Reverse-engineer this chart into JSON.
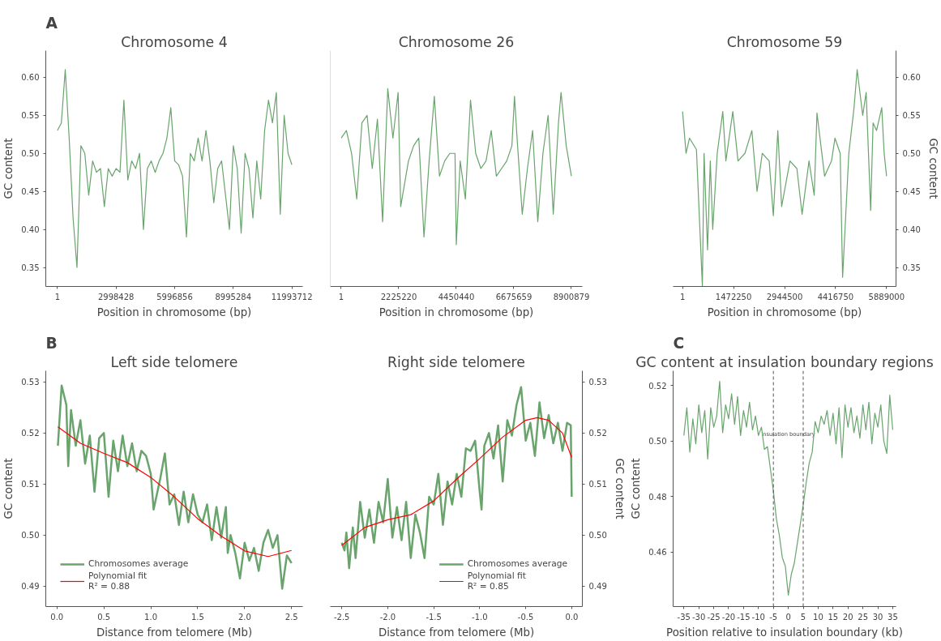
{
  "chart_data": [
    {
      "type": "line",
      "title": "Chromosome 4",
      "xlabel": "Position in chromosome (bp)",
      "ylabel": "GC content",
      "annotations": [
        "A"
      ],
      "grid": false,
      "xlim": [
        -596000,
        12550000
      ],
      "ylim": [
        0.325,
        0.635
      ],
      "xticks": [
        1,
        2998428,
        5996856,
        8995284,
        11993712
      ],
      "yticks": [
        0.35,
        {
          "value": 0.4,
          "label": "0.40"
        },
        0.45,
        {
          "value": 0.5,
          "label": "0.50"
        },
        0.55,
        {
          "value": 0.6,
          "label": "0.60"
        }
      ],
      "series": [
        {
          "color": "#68a46c",
          "x": [
            1,
            200000,
            400000,
            600000,
            800000,
            1000000,
            1200000,
            1400000,
            1600000,
            1800000,
            2000000,
            2200000,
            2400000,
            2600000,
            2800000,
            3000000,
            3200000,
            3400000,
            3600000,
            3800000,
            4000000,
            4200000,
            4400000,
            4600000,
            4800000,
            5000000,
            5200000,
            5400000,
            5600000,
            5800000,
            6000000,
            6200000,
            6400000,
            6600000,
            6800000,
            7000000,
            7200000,
            7400000,
            7600000,
            7800000,
            8000000,
            8200000,
            8400000,
            8600000,
            8800000,
            9000000,
            9200000,
            9400000,
            9600000,
            9800000,
            10000000,
            10200000,
            10400000,
            10600000,
            10800000,
            11000000,
            11200000,
            11400000,
            11600000,
            11800000,
            11993712
          ],
          "values": [
            0.53,
            0.54,
            0.61,
            0.52,
            0.415,
            0.35,
            0.51,
            0.5,
            0.445,
            0.49,
            0.475,
            0.48,
            0.43,
            0.48,
            0.47,
            0.48,
            0.475,
            0.57,
            0.465,
            0.49,
            0.48,
            0.5,
            0.4,
            0.48,
            0.49,
            0.475,
            0.49,
            0.5,
            0.52,
            0.56,
            0.49,
            0.485,
            0.47,
            0.39,
            0.5,
            0.49,
            0.52,
            0.49,
            0.53,
            0.49,
            0.435,
            0.48,
            0.49,
            0.445,
            0.4,
            0.51,
            0.48,
            0.395,
            0.5,
            0.48,
            0.415,
            0.49,
            0.44,
            0.53,
            0.57,
            0.54,
            0.58,
            0.42,
            0.55,
            0.5,
            0.485
          ]
        }
      ]
    },
    {
      "type": "line",
      "title": "Chromosome 26",
      "xlabel": "Position in chromosome (bp)",
      "grid": false,
      "tick_labels": "x",
      "xlim": [
        -423000,
        9324000
      ],
      "ylim": [
        0.325,
        0.635
      ],
      "xticks": [
        1,
        2225220,
        4450440,
        6675659,
        8900879
      ],
      "series": [
        {
          "color": "#68a46c",
          "x": [
            1,
            200000,
            400000,
            600000,
            800000,
            1000000,
            1200000,
            1400000,
            1600000,
            1800000,
            2000000,
            2200000,
            2300000,
            2600000,
            2800000,
            3000000,
            3200000,
            3400000,
            3600000,
            3800000,
            4000000,
            4200000,
            4400000,
            4450000,
            4600000,
            4800000,
            5000000,
            5200000,
            5400000,
            5600000,
            5800000,
            6000000,
            6200000,
            6400000,
            6600000,
            6700000,
            6800000,
            7000000,
            7200000,
            7400000,
            7600000,
            7800000,
            8000000,
            8200000,
            8400000,
            8500000,
            8700000,
            8900879
          ],
          "values": [
            0.52,
            0.53,
            0.5,
            0.44,
            0.54,
            0.55,
            0.48,
            0.545,
            0.41,
            0.585,
            0.52,
            0.58,
            0.43,
            0.49,
            0.51,
            0.52,
            0.39,
            0.49,
            0.575,
            0.47,
            0.49,
            0.5,
            0.5,
            0.38,
            0.49,
            0.44,
            0.57,
            0.5,
            0.48,
            0.49,
            0.53,
            0.47,
            0.48,
            0.49,
            0.51,
            0.575,
            0.52,
            0.42,
            0.48,
            0.53,
            0.41,
            0.5,
            0.55,
            0.42,
            0.54,
            0.58,
            0.51,
            0.47
          ]
        }
      ]
    },
    {
      "type": "line",
      "title": "Chromosome 59",
      "xlabel": "Position in chromosome (bp)",
      "y2label": "GC content",
      "grid": false,
      "xlim": [
        -273000,
        6162000
      ],
      "y2lim": [
        0.325,
        0.635
      ],
      "xticks": [
        1,
        1472250,
        2944500,
        4416750,
        5889000
      ],
      "y2ticks": [
        0.35,
        {
          "value": 0.4,
          "label": "0.40"
        },
        0.45,
        {
          "value": 0.5,
          "label": "0.50"
        },
        0.55,
        {
          "value": 0.6,
          "label": "0.60"
        }
      ],
      "series": [
        {
          "color": "#68a46c",
          "axis": "y2",
          "x": [
            1,
            100000,
            200000,
            400000,
            572000,
            620000,
            720000,
            800000,
            870000,
            1000000,
            1160000,
            1250000,
            1450000,
            1600000,
            1800000,
            2000000,
            2150000,
            2300000,
            2500000,
            2620000,
            2750000,
            2860000,
            3100000,
            3300000,
            3450000,
            3650000,
            3800000,
            3880000,
            4100000,
            4300000,
            4400000,
            4550000,
            4620000,
            4800000,
            4950000,
            5040000,
            5200000,
            5300000,
            5430000,
            5500000,
            5600000,
            5750000,
            5820000,
            5889000
          ],
          "values": [
            0.555,
            0.5,
            0.52,
            0.505,
            0.325,
            0.5,
            0.373,
            0.49,
            0.4,
            0.5,
            0.555,
            0.49,
            0.555,
            0.49,
            0.5,
            0.53,
            0.45,
            0.5,
            0.49,
            0.418,
            0.53,
            0.43,
            0.49,
            0.48,
            0.42,
            0.49,
            0.445,
            0.553,
            0.47,
            0.49,
            0.52,
            0.5,
            0.337,
            0.5,
            0.56,
            0.61,
            0.55,
            0.58,
            0.425,
            0.54,
            0.53,
            0.56,
            0.5,
            0.47
          ]
        }
      ]
    },
    {
      "type": "line",
      "title": "Left side telomere",
      "xlabel": "Distance from telomere (Mb)",
      "ylabel": "GC content",
      "annotations": [
        "B"
      ],
      "grid": false,
      "legend": "bottom left",
      "xlim": [
        -0.119,
        2.619
      ],
      "ylim": [
        0.486,
        0.5322
      ],
      "xticks": [
        {
          "value": 0,
          "label": "0.0"
        },
        0.5,
        {
          "value": 1,
          "label": "1.0"
        },
        1.5,
        {
          "value": 2,
          "label": "2.0"
        },
        2.5
      ],
      "yticks": [
        0.49,
        {
          "value": 0.5,
          "label": "0.50"
        },
        0.51,
        0.52,
        0.53
      ],
      "series": [
        {
          "name": "Chromosomes average",
          "color": "#68a46c",
          "x": [
            0.01,
            0.05,
            0.1,
            0.12,
            0.15,
            0.2,
            0.25,
            0.3,
            0.35,
            0.4,
            0.45,
            0.5,
            0.55,
            0.6,
            0.65,
            0.7,
            0.75,
            0.8,
            0.85,
            0.9,
            0.95,
            1.0,
            1.03,
            1.1,
            1.15,
            1.2,
            1.25,
            1.3,
            1.35,
            1.4,
            1.45,
            1.5,
            1.55,
            1.6,
            1.65,
            1.7,
            1.75,
            1.8,
            1.82,
            1.85,
            1.9,
            1.95,
            2.0,
            2.05,
            2.1,
            2.15,
            2.2,
            2.25,
            2.3,
            2.35,
            2.4,
            2.45,
            2.5
          ],
          "values": [
            0.5175,
            0.5293,
            0.5255,
            0.5135,
            0.5245,
            0.5175,
            0.5225,
            0.514,
            0.5195,
            0.5085,
            0.519,
            0.52,
            0.5075,
            0.5185,
            0.5125,
            0.5195,
            0.5135,
            0.518,
            0.5125,
            0.5165,
            0.5155,
            0.512,
            0.505,
            0.511,
            0.516,
            0.506,
            0.508,
            0.502,
            0.5085,
            0.5025,
            0.508,
            0.504,
            0.5025,
            0.506,
            0.499,
            0.5055,
            0.4995,
            0.5055,
            0.4965,
            0.5,
            0.4965,
            0.4915,
            0.4985,
            0.495,
            0.4975,
            0.493,
            0.4985,
            0.501,
            0.4975,
            0.5,
            0.4895,
            0.496,
            0.4945
          ]
        },
        {
          "name": "Polynomial fit\nR² = 0.88",
          "color": "#ff0000",
          "x": [
            0.01,
            0.25,
            0.5,
            0.75,
            1.0,
            1.25,
            1.5,
            1.75,
            2.0,
            2.25,
            2.5
          ],
          "values": [
            0.5212,
            0.518,
            0.516,
            0.5142,
            0.5113,
            0.5075,
            0.5032,
            0.4998,
            0.4969,
            0.4958,
            0.497
          ]
        }
      ]
    },
    {
      "type": "line",
      "title": "Right side telomere",
      "xlabel": "Distance from telomere (Mb)",
      "y2label": "GC content",
      "grid": false,
      "legend": "bottom right",
      "xlim": [
        -2.625,
        0.116
      ],
      "y2lim": [
        0.486,
        0.5322
      ],
      "xticks": [
        -2.5,
        {
          "value": -2,
          "label": "-2.0"
        },
        -1.5,
        {
          "value": -1,
          "label": "-1.0"
        },
        -0.5,
        {
          "value": 0,
          "label": "0.0"
        }
      ],
      "y2ticks": [
        0.49,
        {
          "value": 0.5,
          "label": "0.50"
        },
        0.51,
        0.52,
        0.53
      ],
      "series": [
        {
          "name": "Chromosomes average",
          "color": "#68a46c",
          "axis": "y2",
          "x": [
            -2.5,
            -2.47,
            -2.45,
            -2.42,
            -2.38,
            -2.35,
            -2.3,
            -2.25,
            -2.2,
            -2.15,
            -2.1,
            -2.05,
            -2.0,
            -1.95,
            -1.9,
            -1.85,
            -1.8,
            -1.75,
            -1.7,
            -1.65,
            -1.6,
            -1.55,
            -1.5,
            -1.45,
            -1.4,
            -1.35,
            -1.3,
            -1.25,
            -1.2,
            -1.15,
            -1.1,
            -1.05,
            -1.0,
            -0.98,
            -0.95,
            -0.9,
            -0.85,
            -0.8,
            -0.75,
            -0.7,
            -0.65,
            -0.6,
            -0.55,
            -0.5,
            -0.45,
            -0.4,
            -0.35,
            -0.3,
            -0.25,
            -0.2,
            -0.15,
            -0.1,
            -0.05,
            -0.01,
            0.0
          ],
          "values": [
            0.4985,
            0.497,
            0.5005,
            0.4935,
            0.5015,
            0.4955,
            0.5065,
            0.4995,
            0.505,
            0.4985,
            0.5065,
            0.5025,
            0.511,
            0.4995,
            0.5055,
            0.499,
            0.5065,
            0.4955,
            0.504,
            0.5005,
            0.4955,
            0.5075,
            0.506,
            0.512,
            0.502,
            0.5105,
            0.506,
            0.512,
            0.5075,
            0.517,
            0.5165,
            0.5185,
            0.5085,
            0.505,
            0.5175,
            0.52,
            0.515,
            0.5215,
            0.5105,
            0.5225,
            0.5195,
            0.5255,
            0.529,
            0.5185,
            0.522,
            0.5155,
            0.526,
            0.519,
            0.5235,
            0.518,
            0.522,
            0.5165,
            0.522,
            0.5215,
            0.5075
          ]
        },
        {
          "name": "Polynomial fit\nR² = 0.85",
          "color": "#ff0000",
          "axis": "y2",
          "x": [
            -2.5,
            -2.25,
            -2.0,
            -1.75,
            -1.5,
            -1.25,
            -1.0,
            -0.75,
            -0.5,
            -0.375,
            -0.25,
            -0.1,
            0.0
          ],
          "values": [
            0.498,
            0.5015,
            0.503,
            0.504,
            0.5067,
            0.511,
            0.515,
            0.5192,
            0.5225,
            0.523,
            0.5225,
            0.52,
            0.5152
          ]
        }
      ]
    },
    {
      "type": "line",
      "title": "GC content at insulation boundary regions",
      "xlabel": "Position relative to insulation boundary (kb)",
      "ylabel": "GC content",
      "grid": false,
      "annotations": [
        "C",
        "insulation boundary"
      ],
      "ref_lines": [
        {
          "axis": "x",
          "value": -5,
          "color": "#555555",
          "line_style": "dashed"
        },
        {
          "axis": "x",
          "value": 5,
          "color": "#555555",
          "line_style": "dashed"
        }
      ],
      "xlim": [
        -38.6,
        36.1
      ],
      "ylim": [
        0.4404,
        0.5253
      ],
      "xticks": [
        -35,
        -30,
        -25,
        -20,
        -15,
        -10,
        -5,
        0,
        5,
        10,
        15,
        20,
        25,
        30,
        35
      ],
      "yticks": [
        0.46,
        0.48,
        {
          "value": 0.5,
          "label": "0.50"
        },
        0.52
      ],
      "series": [
        {
          "color": "#68a46c",
          "x": [
            -35,
            -34,
            -33,
            -32,
            -31,
            -30,
            -29,
            -28,
            -27,
            -26,
            -25,
            -24,
            -23,
            -22,
            -21,
            -20,
            -19,
            -18,
            -17,
            -16,
            -15,
            -14,
            -13,
            -12,
            -11,
            -10,
            -9,
            -8,
            -7,
            -6,
            -5,
            -4,
            -3,
            -2,
            -1,
            0,
            1,
            2,
            3,
            4,
            5,
            6,
            7,
            8,
            9,
            10,
            11,
            12,
            13,
            14,
            15,
            16,
            17,
            18,
            19,
            20,
            21,
            22,
            23,
            24,
            25,
            26,
            27,
            28,
            29,
            30,
            31,
            32,
            33,
            34,
            35
          ],
          "values": [
            0.502,
            0.512,
            0.496,
            0.508,
            0.499,
            0.513,
            0.503,
            0.511,
            0.4935,
            0.512,
            0.505,
            0.509,
            0.5215,
            0.503,
            0.513,
            0.508,
            0.517,
            0.506,
            0.516,
            0.502,
            0.511,
            0.505,
            0.514,
            0.504,
            0.509,
            0.502,
            0.505,
            0.497,
            0.498,
            0.49,
            0.482,
            0.472,
            0.466,
            0.458,
            0.455,
            0.4445,
            0.452,
            0.456,
            0.463,
            0.47,
            0.477,
            0.485,
            0.492,
            0.496,
            0.507,
            0.503,
            0.509,
            0.506,
            0.511,
            0.502,
            0.51,
            0.499,
            0.512,
            0.494,
            0.513,
            0.505,
            0.512,
            0.503,
            0.509,
            0.501,
            0.513,
            0.504,
            0.514,
            0.499,
            0.51,
            0.505,
            0.513,
            0.5,
            0.4955,
            0.5165,
            0.504
          ]
        }
      ]
    }
  ]
}
